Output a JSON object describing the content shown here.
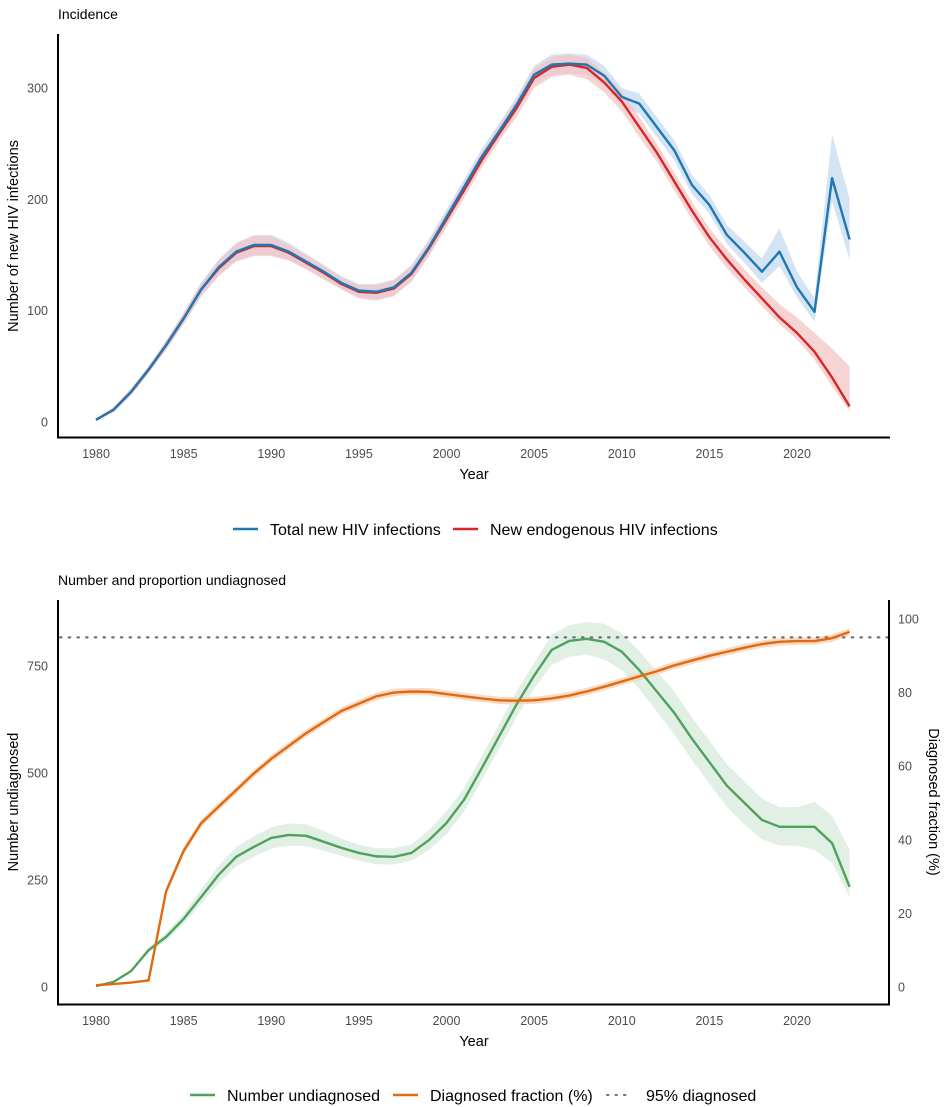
{
  "chart_data": [
    {
      "type": "line",
      "title": "Incidence",
      "xlabel": "Year",
      "ylabel": "Number of new HIV infections",
      "xlim": [
        1978,
        2025
      ],
      "ylim": [
        -14,
        345
      ],
      "x_ticks": [
        1980,
        1985,
        1990,
        1995,
        2000,
        2005,
        2010,
        2015,
        2020
      ],
      "y_ticks": [
        0,
        100,
        200,
        300
      ],
      "legend_position": "bottom",
      "grid": false,
      "x": [
        1980,
        1981,
        1982,
        1983,
        1984,
        1985,
        1986,
        1987,
        1988,
        1989,
        1990,
        1991,
        1992,
        1993,
        1994,
        1995,
        1996,
        1997,
        1998,
        1999,
        2000,
        2001,
        2002,
        2003,
        2004,
        2005,
        2006,
        2007,
        2008,
        2009,
        2010,
        2011,
        2012,
        2013,
        2014,
        2015,
        2016,
        2017,
        2018,
        2019,
        2020,
        2021,
        2022,
        2023
      ],
      "series": [
        {
          "name": "Total new HIV infections",
          "color": "#1f77b4",
          "band_color": "#c6dbef",
          "values": [
            2,
            11,
            27,
            47,
            69,
            93,
            119,
            139,
            153,
            159,
            159,
            153,
            144,
            135,
            125,
            118,
            117,
            121,
            134,
            157,
            184,
            211,
            238,
            261,
            285,
            312,
            321,
            322,
            321,
            311,
            292,
            286,
            265,
            244,
            213,
            195,
            168,
            152,
            135,
            153,
            121,
            99,
            219,
            164
          ],
          "lower": [
            1,
            9,
            24,
            44,
            65,
            88,
            113,
            132,
            145,
            150,
            150,
            146,
            138,
            129,
            120,
            112,
            110,
            114,
            127,
            150,
            177,
            204,
            231,
            254,
            278,
            304,
            312,
            313,
            312,
            303,
            284,
            277,
            256,
            235,
            205,
            187,
            160,
            143,
            125,
            140,
            112,
            90,
            198,
            146
          ],
          "upper": [
            3,
            13,
            30,
            50,
            73,
            98,
            125,
            146,
            161,
            168,
            168,
            161,
            151,
            141,
            131,
            124,
            124,
            128,
            141,
            164,
            191,
            218,
            245,
            268,
            292,
            320,
            330,
            331,
            330,
            320,
            300,
            295,
            274,
            253,
            222,
            204,
            177,
            162,
            147,
            174,
            135,
            111,
            258,
            201
          ]
        },
        {
          "name": "New endogenous HIV infections",
          "color": "#d62728",
          "band_color": "#f4c2c2",
          "values": [
            2,
            11,
            27,
            47,
            69,
            93,
            119,
            138,
            152,
            158,
            158,
            152,
            143,
            134,
            124,
            117,
            116,
            120,
            133,
            156,
            182,
            208,
            235,
            259,
            282,
            309,
            319,
            321,
            318,
            305,
            288,
            265,
            242,
            216,
            190,
            166,
            146,
            128,
            111,
            94,
            80,
            63,
            40,
            14
          ],
          "lower": [
            1,
            9,
            24,
            44,
            65,
            88,
            113,
            131,
            144,
            149,
            149,
            145,
            137,
            128,
            119,
            111,
            109,
            113,
            126,
            149,
            175,
            201,
            228,
            252,
            274,
            300,
            310,
            312,
            308,
            296,
            279,
            256,
            234,
            208,
            182,
            158,
            138,
            121,
            104,
            88,
            74,
            56,
            32,
            10
          ],
          "upper": [
            3,
            13,
            30,
            50,
            73,
            98,
            125,
            145,
            160,
            167,
            167,
            159,
            150,
            140,
            130,
            123,
            123,
            127,
            140,
            163,
            189,
            215,
            242,
            266,
            290,
            317,
            328,
            330,
            327,
            314,
            297,
            274,
            250,
            224,
            198,
            174,
            155,
            137,
            121,
            106,
            94,
            80,
            66,
            50
          ]
        }
      ]
    },
    {
      "type": "line",
      "title": "Number and proportion undiagnosed",
      "xlabel": "Year",
      "ylabel": "Number undiagnosed",
      "ylabel_right": "Diagnosed fraction (%)",
      "xlim": [
        1978,
        2025
      ],
      "ylim": [
        -40,
        940
      ],
      "ylim_right": [
        -4.6,
        104
      ],
      "x_ticks": [
        1980,
        1985,
        1990,
        1995,
        2000,
        2005,
        2010,
        2015,
        2020
      ],
      "y_ticks": [
        0,
        250,
        500,
        750
      ],
      "y_ticks_right": [
        0,
        20,
        40,
        60,
        80,
        100
      ],
      "legend_position": "bottom",
      "grid": false,
      "x": [
        1980,
        1981,
        1982,
        1983,
        1984,
        1985,
        1986,
        1987,
        1988,
        1989,
        1990,
        1991,
        1992,
        1993,
        1994,
        1995,
        1996,
        1997,
        1998,
        1999,
        2000,
        2001,
        2002,
        2003,
        2004,
        2005,
        2006,
        2007,
        2008,
        2009,
        2010,
        2011,
        2012,
        2013,
        2014,
        2015,
        2016,
        2017,
        2018,
        2019,
        2020,
        2021,
        2022,
        2023
      ],
      "series": [
        {
          "name": "Number undiagnosed",
          "axis": "left",
          "color": "#4ea25e",
          "band_color": "#dcecdf",
          "values": [
            2,
            12,
            37,
            86,
            117,
            159,
            210,
            262,
            304,
            327,
            348,
            355,
            353,
            339,
            325,
            313,
            305,
            304,
            313,
            343,
            383,
            437,
            510,
            585,
            660,
            727,
            787,
            808,
            813,
            806,
            783,
            740,
            690,
            640,
            580,
            525,
            470,
            430,
            390,
            374,
            374,
            374,
            336,
            234
          ],
          "lower": [
            1,
            10,
            33,
            80,
            108,
            147,
            194,
            242,
            282,
            304,
            323,
            330,
            329,
            318,
            306,
            295,
            287,
            286,
            295,
            320,
            357,
            410,
            482,
            556,
            630,
            697,
            752,
            771,
            776,
            765,
            740,
            696,
            643,
            590,
            530,
            475,
            420,
            380,
            345,
            330,
            330,
            320,
            290,
            210
          ],
          "upper": [
            3,
            14,
            41,
            92,
            126,
            172,
            228,
            284,
            327,
            352,
            373,
            382,
            380,
            364,
            346,
            332,
            324,
            324,
            333,
            366,
            410,
            464,
            538,
            614,
            690,
            757,
            822,
            845,
            852,
            848,
            826,
            784,
            737,
            690,
            630,
            575,
            520,
            480,
            440,
            420,
            420,
            432,
            400,
            320
          ]
        },
        {
          "name": "Diagnosed fraction (%)",
          "axis": "right",
          "color": "#e06a10",
          "band_color": "#f9d3ba",
          "values": [
            0.5,
            0.8,
            1.2,
            1.8,
            26,
            37,
            44.5,
            49,
            53.5,
            58,
            62,
            65.5,
            69,
            72,
            75,
            77,
            79,
            80,
            80.3,
            80.2,
            79.6,
            79,
            78.4,
            77.9,
            77.8,
            77.9,
            78.4,
            79.2,
            80.3,
            81.6,
            83,
            84.4,
            85.8,
            87.4,
            88.7,
            90,
            91.1,
            92.2,
            93.2,
            93.8,
            94,
            94,
            94.8,
            96.5
          ],
          "lower": [
            0.4,
            0.7,
            1.1,
            1.6,
            25,
            36,
            43.5,
            48,
            52.5,
            57,
            61,
            64.5,
            68,
            71,
            74,
            76,
            78,
            79,
            79.3,
            79.2,
            78.6,
            78,
            77.4,
            76.9,
            76.8,
            76.9,
            77.4,
            78.2,
            79.3,
            80.6,
            82,
            83.4,
            84.8,
            86.4,
            87.7,
            89,
            90.1,
            91.2,
            92.2,
            92.8,
            93,
            93,
            93.8,
            95.5
          ],
          "upper": [
            0.6,
            0.9,
            1.3,
            2,
            27,
            38,
            45.5,
            50,
            54.5,
            59,
            63,
            66.5,
            70,
            73,
            76,
            78,
            80,
            81,
            81.3,
            81.2,
            80.6,
            80,
            79.4,
            78.9,
            78.8,
            78.9,
            79.4,
            80.2,
            81.3,
            82.6,
            84,
            85.4,
            86.8,
            88.4,
            89.7,
            91,
            92.1,
            93.2,
            94.2,
            94.8,
            95,
            95,
            95.8,
            97.5
          ]
        },
        {
          "name": "95% diagnosed",
          "axis": "right",
          "style": "dotted",
          "color": "#707070",
          "value": 95
        }
      ]
    }
  ]
}
